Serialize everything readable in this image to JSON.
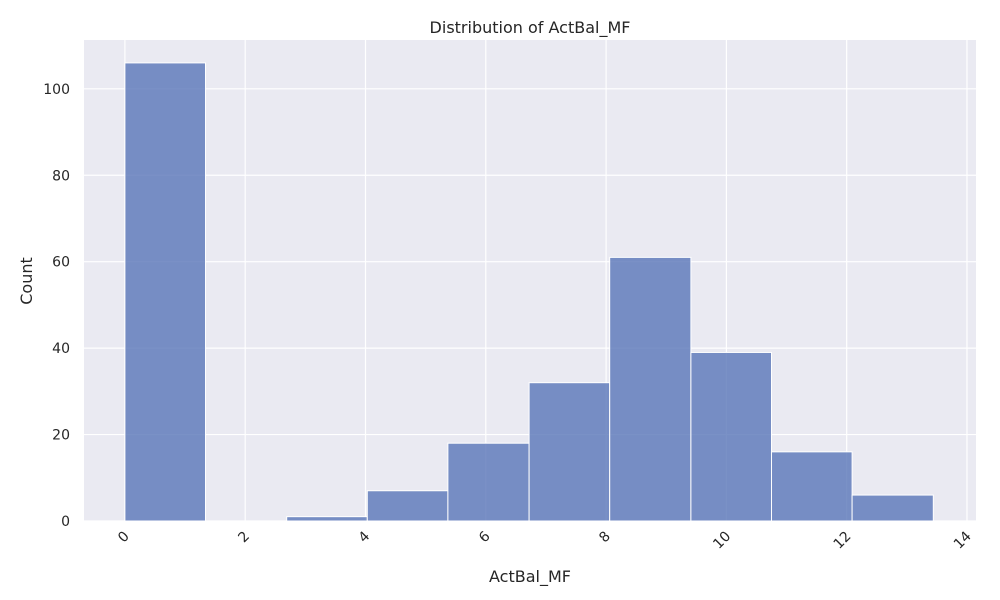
{
  "chart_data": {
    "type": "bar",
    "title": "Distribution of ActBal_MF",
    "xlabel": "ActBal_MF",
    "ylabel": "Count",
    "xlim": [
      -0.68,
      14.15
    ],
    "ylim": [
      0,
      111.3
    ],
    "xticks": [
      0,
      2,
      4,
      6,
      8,
      10,
      12,
      14
    ],
    "yticks": [
      0,
      20,
      40,
      60,
      80,
      100
    ],
    "xtick_labels": [
      "0",
      "2",
      "4",
      "6",
      "8",
      "10",
      "12",
      "14"
    ],
    "ytick_labels": [
      "0",
      "20",
      "40",
      "60",
      "80",
      "100"
    ],
    "bins": [
      {
        "start": 0.0,
        "end": 1.34,
        "count": 106
      },
      {
        "start": 1.34,
        "end": 2.69,
        "count": 0
      },
      {
        "start": 2.69,
        "end": 4.03,
        "count": 1
      },
      {
        "start": 4.03,
        "end": 5.37,
        "count": 7
      },
      {
        "start": 5.37,
        "end": 6.72,
        "count": 18
      },
      {
        "start": 6.72,
        "end": 8.06,
        "count": 32
      },
      {
        "start": 8.06,
        "end": 9.41,
        "count": 61
      },
      {
        "start": 9.41,
        "end": 10.75,
        "count": 39
      },
      {
        "start": 10.75,
        "end": 12.09,
        "count": 16
      },
      {
        "start": 12.09,
        "end": 13.44,
        "count": 6
      }
    ],
    "grid": true,
    "colors": {
      "bar": "#5975b8",
      "background": "#eaeaf2",
      "grid": "#ffffff"
    }
  }
}
